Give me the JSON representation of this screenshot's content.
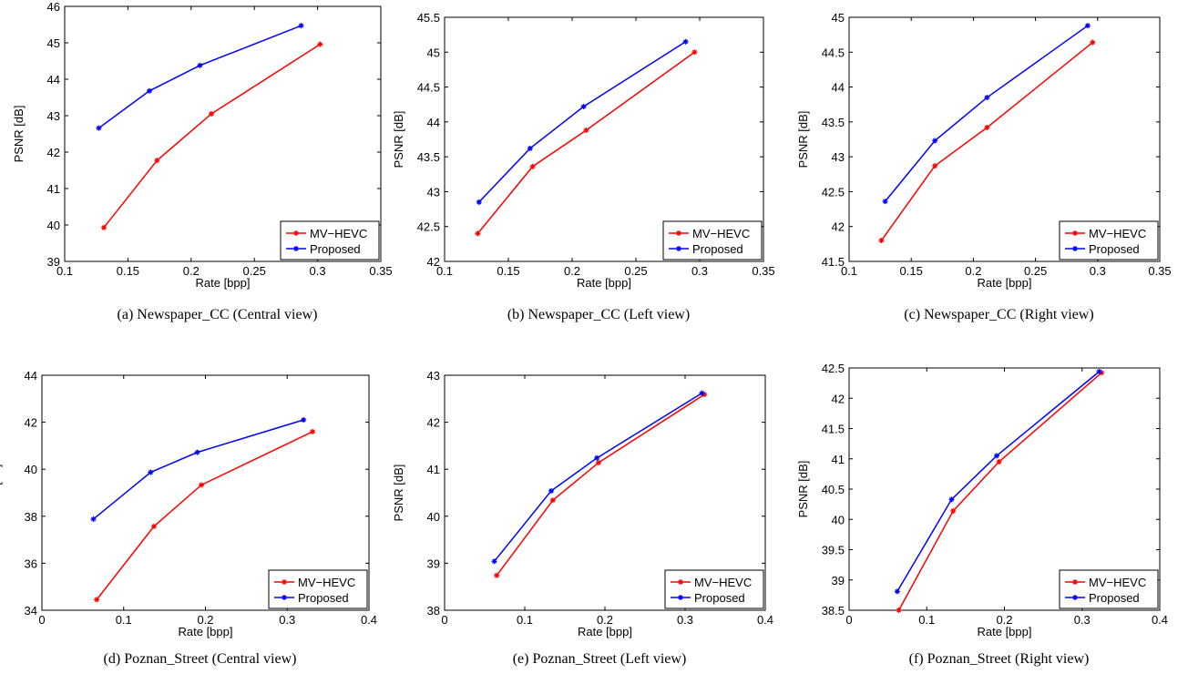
{
  "figure": {
    "legend_entries": [
      "MV−HEVC",
      "Proposed"
    ]
  },
  "chart_data": [
    {
      "type": "line",
      "caption": "(a) Newspaper_CC (Central view)",
      "xlabel": "Rate [bpp]",
      "ylabel": "PSNR [dB]",
      "xlim": [
        0.1,
        0.35
      ],
      "ylim": [
        39,
        46
      ],
      "xticks": [
        "0.1",
        "0.15",
        "0.2",
        "0.25",
        "0.3",
        "0.35"
      ],
      "yticks": [
        "39",
        "40",
        "41",
        "42",
        "43",
        "44",
        "45",
        "46"
      ],
      "legend_position": "bottom-right",
      "grid": false,
      "series": [
        {
          "name": "MV−HEVC",
          "color": "#ff0000",
          "x": [
            0.131,
            0.173,
            0.216,
            0.302
          ],
          "y": [
            39.93,
            41.77,
            43.05,
            44.96
          ]
        },
        {
          "name": "Proposed",
          "color": "#0000ff",
          "x": [
            0.127,
            0.167,
            0.207,
            0.287
          ],
          "y": [
            42.66,
            43.68,
            44.38,
            45.47
          ]
        }
      ]
    },
    {
      "type": "line",
      "caption": "(b) Newspaper_CC (Left view)",
      "xlabel": "Rate [bpp]",
      "ylabel": "PSNR [dB]",
      "xlim": [
        0.1,
        0.35
      ],
      "ylim": [
        42,
        45.5
      ],
      "xticks": [
        "0.1",
        "0.15",
        "0.2",
        "0.25",
        "0.3",
        "0.35"
      ],
      "yticks": [
        "42",
        "42.5",
        "43",
        "43.5",
        "44",
        "44.5",
        "45",
        "45.5"
      ],
      "legend_position": "bottom-right",
      "grid": false,
      "series": [
        {
          "name": "MV−HEVC",
          "color": "#ff0000",
          "x": [
            0.126,
            0.169,
            0.211,
            0.296
          ],
          "y": [
            42.4,
            43.36,
            43.88,
            45.0
          ]
        },
        {
          "name": "Proposed",
          "color": "#0000ff",
          "x": [
            0.127,
            0.167,
            0.209,
            0.289
          ],
          "y": [
            42.85,
            43.62,
            44.22,
            45.15
          ]
        }
      ]
    },
    {
      "type": "line",
      "caption": "(c) Newspaper_CC (Right view)",
      "xlabel": "Rate [bpp]",
      "ylabel": "PSNR [dB]",
      "xlim": [
        0.1,
        0.35
      ],
      "ylim": [
        41.5,
        45
      ],
      "xticks": [
        "0.1",
        "0.15",
        "0.2",
        "0.25",
        "0.3",
        "0.35"
      ],
      "yticks": [
        "41.5",
        "42",
        "42.5",
        "43",
        "43.5",
        "44",
        "44.5",
        "45"
      ],
      "legend_position": "bottom-right",
      "grid": false,
      "series": [
        {
          "name": "MV−HEVC",
          "color": "#ff0000",
          "x": [
            0.126,
            0.169,
            0.211,
            0.296
          ],
          "y": [
            41.8,
            42.87,
            43.42,
            44.64
          ]
        },
        {
          "name": "Proposed",
          "color": "#0000ff",
          "x": [
            0.129,
            0.169,
            0.211,
            0.292
          ],
          "y": [
            42.36,
            43.23,
            43.85,
            44.88
          ]
        }
      ]
    },
    {
      "type": "line",
      "caption": "(d) Poznan_Street (Central view)",
      "xlabel": "Rate [bpp]",
      "ylabel": "PSNR [dB]",
      "xlim": [
        0,
        0.4
      ],
      "ylim": [
        34,
        44
      ],
      "xticks": [
        "0",
        "0.1",
        "0.2",
        "0.3",
        "0.4"
      ],
      "yticks": [
        "34",
        "36",
        "38",
        "40",
        "42",
        "44"
      ],
      "legend_position": "bottom-right",
      "grid": false,
      "series": [
        {
          "name": "MV−HEVC",
          "color": "#ff0000",
          "x": [
            0.067,
            0.137,
            0.195,
            0.331
          ],
          "y": [
            34.45,
            37.57,
            39.33,
            41.6
          ]
        },
        {
          "name": "Proposed",
          "color": "#0000ff",
          "x": [
            0.063,
            0.133,
            0.19,
            0.32
          ],
          "y": [
            37.88,
            39.87,
            40.72,
            42.1
          ]
        }
      ]
    },
    {
      "type": "line",
      "caption": "(e) Poznan_Street (Left view)",
      "xlabel": "Rate [bpp]",
      "ylabel": "PSNR [dB]",
      "xlim": [
        0,
        0.4
      ],
      "ylim": [
        38,
        43
      ],
      "xticks": [
        "0",
        "0.1",
        "0.2",
        "0.3",
        "0.4"
      ],
      "yticks": [
        "38",
        "39",
        "40",
        "41",
        "42",
        "43"
      ],
      "legend_position": "bottom-right",
      "grid": false,
      "series": [
        {
          "name": "MV−HEVC",
          "color": "#ff0000",
          "x": [
            0.065,
            0.135,
            0.192,
            0.324
          ],
          "y": [
            38.74,
            40.34,
            41.14,
            42.59
          ]
        },
        {
          "name": "Proposed",
          "color": "#0000ff",
          "x": [
            0.062,
            0.133,
            0.19,
            0.321
          ],
          "y": [
            39.04,
            40.54,
            41.24,
            42.62
          ]
        }
      ]
    },
    {
      "type": "line",
      "caption": "(f) Poznan_Street (Right view)",
      "xlabel": "Rate [bpp]",
      "ylabel": "PSNR [dB]",
      "xlim": [
        0,
        0.4
      ],
      "ylim": [
        38.5,
        42.5
      ],
      "xticks": [
        "0",
        "0.1",
        "0.2",
        "0.3",
        "0.4"
      ],
      "yticks": [
        "38.5",
        "39",
        "39.5",
        "40",
        "40.5",
        "41",
        "41.5",
        "42",
        "42.5"
      ],
      "legend_position": "bottom-right",
      "grid": false,
      "series": [
        {
          "name": "MV−HEVC",
          "color": "#ff0000",
          "x": [
            0.064,
            0.134,
            0.193,
            0.325
          ],
          "y": [
            38.5,
            40.14,
            40.95,
            42.42
          ]
        },
        {
          "name": "Proposed",
          "color": "#0000ff",
          "x": [
            0.062,
            0.132,
            0.19,
            0.322
          ],
          "y": [
            38.81,
            40.33,
            41.05,
            42.44
          ]
        }
      ]
    }
  ]
}
